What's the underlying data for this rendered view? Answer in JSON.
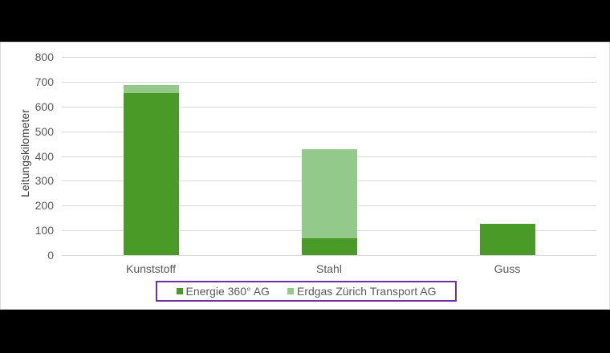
{
  "chart_data": {
    "type": "bar",
    "stacked": true,
    "title": "",
    "xlabel": "",
    "ylabel": "Leitungskilometer",
    "ylim": [
      0,
      800
    ],
    "yticks": [
      0,
      100,
      200,
      300,
      400,
      500,
      600,
      700,
      800
    ],
    "grid": true,
    "legend_position": "bottom",
    "categories": [
      "Kunststoff",
      "Stahl",
      "Guss"
    ],
    "series": [
      {
        "name": "Energie 360° AG",
        "color": "#4a9a28",
        "values": [
          655,
          68,
          125
        ]
      },
      {
        "name": "Erdgas Zürich Transport AG",
        "color": "#93c98a",
        "values": [
          32,
          359,
          0
        ]
      }
    ]
  },
  "axis": {
    "ylabel": "Leitungskilometer",
    "ticks": [
      "0",
      "100",
      "200",
      "300",
      "400",
      "500",
      "600",
      "700",
      "800"
    ]
  },
  "categories": [
    "Kunststoff",
    "Stahl",
    "Guss"
  ],
  "legend": {
    "items": [
      {
        "label": "Energie 360° AG",
        "color": "#4a9a28"
      },
      {
        "label": "Erdgas Zürich Transport AG",
        "color": "#93c98a"
      }
    ],
    "border_color": "#7030a0"
  }
}
